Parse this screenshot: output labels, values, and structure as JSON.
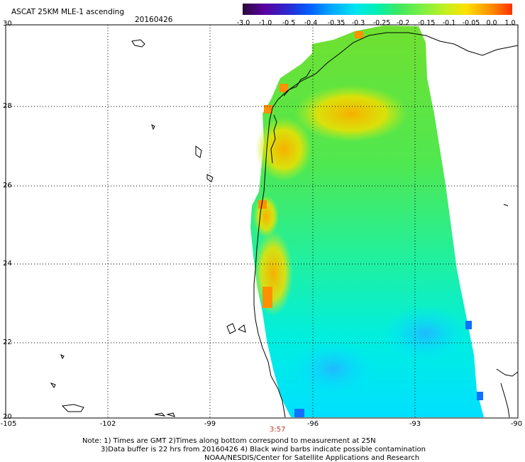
{
  "header": {
    "title": "ASCAT 25KM MLE-1 ascending",
    "date": "20160426"
  },
  "colorbar": {
    "labels": [
      "-3.0",
      "-1.0",
      "-0.5",
      "-0.4",
      "-0.35",
      "-0.3",
      "-0.25",
      "-0.2",
      "-0.15",
      "-0.1",
      "-0.05",
      "0.0",
      "1.0"
    ],
    "colors": [
      "#2a0a3a",
      "#5a00a0",
      "#2a2ad0",
      "#0060ff",
      "#00a8ff",
      "#00e6f0",
      "#00f0b0",
      "#40e860",
      "#80f040",
      "#c0f020",
      "#ffe000",
      "#ff9000",
      "#ff3000"
    ]
  },
  "axes": {
    "lat_ticks": [
      "30",
      "28",
      "26",
      "24",
      "22",
      "20"
    ],
    "lon_ticks": [
      "-105",
      "-102",
      "-99",
      "-96",
      "-93",
      "-90"
    ]
  },
  "time_label": "3:57",
  "notes": {
    "line1": "Note: 1) Times are GMT 2)Times along bottom correspond to measurement at 25N",
    "line2": "3)Data buffer is 22 hrs from 20160426 4) Black wind barbs indicate possible contamination",
    "line3": "NOAA/NESDIS/Center for Satellite Applications and Research"
  }
}
